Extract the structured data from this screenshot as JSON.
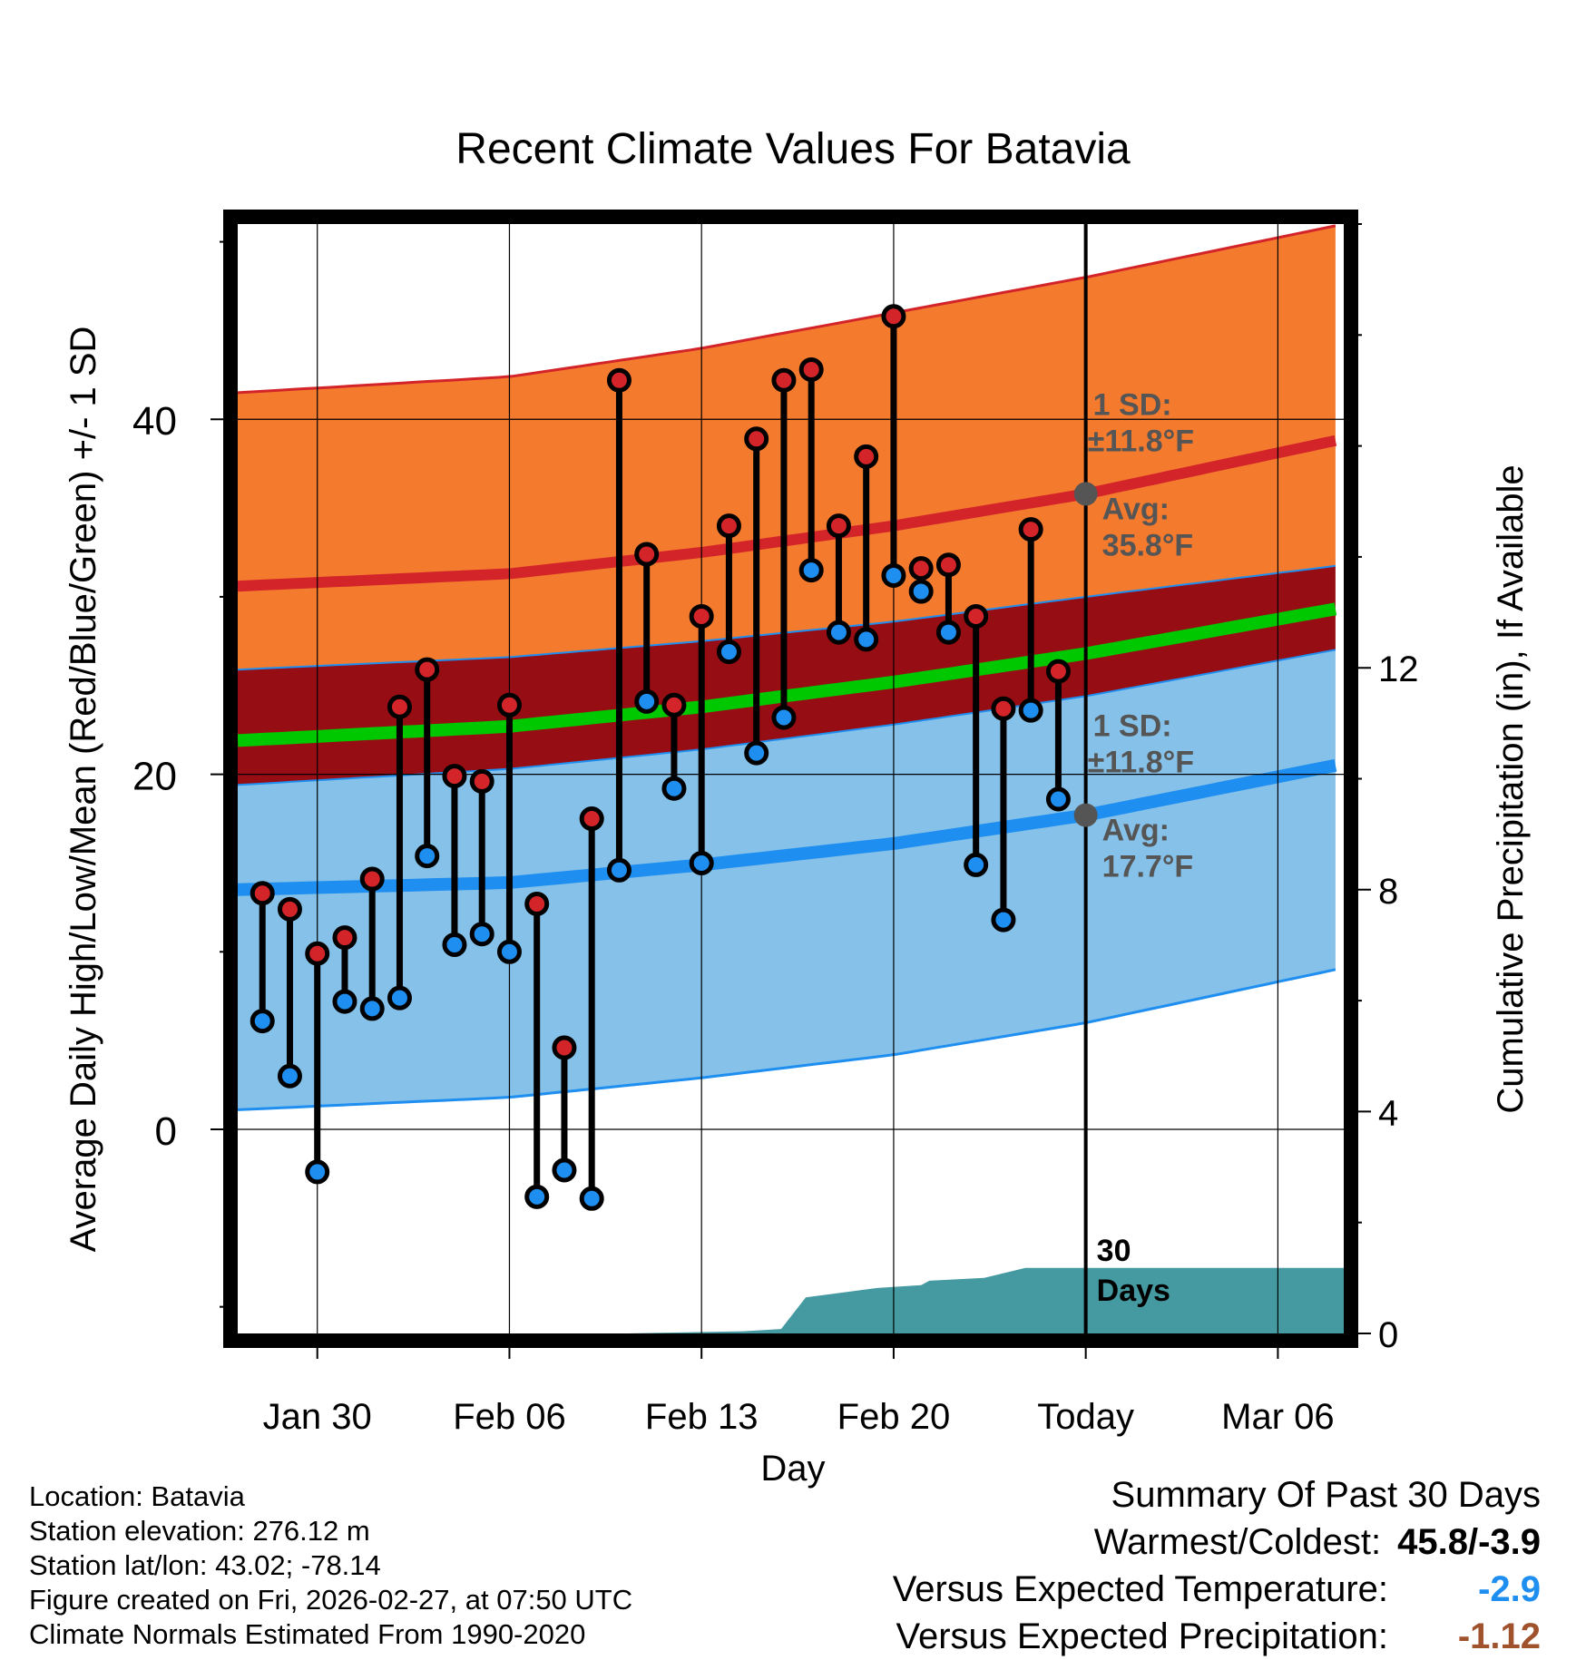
{
  "chart_data": {
    "type": "line",
    "title": "Recent Climate Values For Batavia",
    "xlabel": "Day",
    "ylabel": "Average Daily High/Low/Mean (Red/Blue/Green) +/- 1 SD",
    "y2label": "Cumulative Precipitation (in), If Available",
    "xlim": [
      -2.9,
      37.4
    ],
    "ylim": [
      -11.5,
      51
    ],
    "y2lim": [
      0,
      20
    ],
    "x_ticks": [
      {
        "day": 0,
        "label": "Jan 30"
      },
      {
        "day": 7,
        "label": "Feb 06"
      },
      {
        "day": 14,
        "label": "Feb 13"
      },
      {
        "day": 21,
        "label": "Feb 20"
      },
      {
        "day": 28,
        "label": "Today"
      },
      {
        "day": 35,
        "label": "Mar 06"
      }
    ],
    "y_ticks": [
      0,
      20,
      40
    ],
    "y2_ticks": [
      0,
      4,
      8,
      12
    ],
    "today_day": 28,
    "normals": {
      "days": [
        -2.9,
        7,
        14,
        21,
        28,
        37.4
      ],
      "high_upper": [
        41.5,
        42.4,
        44.0,
        46.0,
        48.0,
        51.0
      ],
      "high_mean": [
        30.6,
        31.3,
        32.5,
        34.0,
        35.8,
        38.9
      ],
      "high_lower": [
        25.9,
        26.6,
        27.5,
        28.6,
        30.0,
        31.8
      ],
      "mean_mean": [
        21.9,
        22.7,
        23.8,
        25.2,
        26.8,
        29.4
      ],
      "low_upper": [
        19.4,
        20.3,
        21.4,
        22.8,
        24.4,
        27.1
      ],
      "low_mean": [
        13.5,
        13.9,
        14.9,
        16.1,
        17.7,
        20.6
      ],
      "low_lower": [
        1.1,
        1.8,
        2.9,
        4.2,
        6.0,
        9.1
      ]
    },
    "series": [
      {
        "name": "Daily High",
        "values": [
          13.3,
          12.4,
          9.9,
          10.8,
          14.1,
          23.8,
          25.9,
          19.9,
          19.6,
          23.9,
          12.7,
          4.6,
          17.5,
          42.2,
          32.4,
          23.9,
          28.9,
          34.0,
          38.9,
          42.2,
          42.8,
          34.0,
          37.9,
          45.8,
          31.6,
          31.8,
          28.9,
          23.7,
          33.8,
          25.8
        ]
      },
      {
        "name": "Daily Low",
        "values": [
          6.1,
          3.0,
          -2.4,
          7.2,
          6.8,
          7.4,
          15.4,
          10.4,
          11.0,
          10.0,
          -3.8,
          -2.3,
          -3.9,
          14.6,
          24.1,
          19.2,
          15.0,
          26.9,
          21.2,
          23.2,
          31.5,
          28.0,
          27.6,
          31.2,
          30.3,
          28.0,
          14.9,
          11.8,
          23.6,
          18.6
        ]
      },
      {
        "name": "Cumulative Precipitation",
        "days": [
          -2.9,
          11.3,
          15.5,
          16.9,
          17.8,
          20.4,
          22.0,
          22.3,
          24.3,
          25.8,
          36.0,
          37.4
        ],
        "values": [
          0,
          0,
          0.04,
          0.08,
          0.65,
          0.82,
          0.87,
          0.95,
          1.0,
          1.18,
          1.18,
          1.18
        ]
      }
    ],
    "annotations": {
      "high_sd_label": "1 SD:",
      "high_sd_value": "±11.8°F",
      "high_avg_label": "Avg:",
      "high_avg_value": "35.8°F",
      "low_sd_label": "1 SD:",
      "low_sd_value": "±11.8°F",
      "low_avg_label": "Avg:",
      "low_avg_value": "17.7°F",
      "precip_days_line1": "30",
      "precip_days_line2": "Days"
    },
    "colors": {
      "high_band": "#f47a2e",
      "mean_band": "#960e14",
      "low_band": "#85c1e8",
      "high_line": "#d3242a",
      "mean_line": "#00c800",
      "low_line": "#1e8ef0",
      "precip": "#449aa0",
      "high_marker": "#d3242a",
      "low_marker": "#1e8ef0",
      "annotation": "#555555"
    }
  },
  "footer": {
    "location": "Location: Batavia",
    "elevation": "Station elevation: 276.12 m",
    "latlon": "Station lat/lon: 43.02; -78.14",
    "created": "Figure created on Fri, 2026-02-27, at 07:50 UTC",
    "normals": "Climate Normals Estimated From 1990-2020"
  },
  "summary": {
    "title": "Summary Of Past 30 Days",
    "warm_cold_label": "Warmest/Coldest:",
    "warm_cold_value": "45.8/-3.9",
    "temp_label": "Versus Expected Temperature:",
    "temp_value": "-2.9",
    "temp_color": "#1e8ef0",
    "precip_label": "Versus Expected Precipitation:",
    "precip_value": "-1.12",
    "precip_color": "#a0522d"
  }
}
